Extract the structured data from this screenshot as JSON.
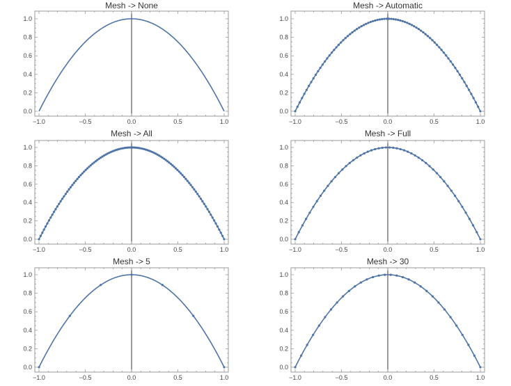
{
  "chart_data": [
    {
      "type": "line",
      "title": "Mesh -> None",
      "function": "1 - x^2",
      "xlim": [
        -1.0,
        1.0
      ],
      "ylim": [
        0.0,
        1.0
      ],
      "xticks": [
        "-1.0",
        "-0.5",
        "0.0",
        "0.5",
        "1.0"
      ],
      "yticks": [
        "0.0",
        "0.2",
        "0.4",
        "0.6",
        "0.8",
        "1.0"
      ],
      "mesh_points": 0,
      "grid": false,
      "series": [
        {
          "color": "#4e73a6"
        }
      ]
    },
    {
      "type": "line",
      "title": "Mesh -> Automatic",
      "function": "1 - x^2",
      "xlim": [
        -1.0,
        1.0
      ],
      "ylim": [
        0.0,
        1.0
      ],
      "xticks": [
        "-1.0",
        "-0.5",
        "0.0",
        "0.5",
        "1.0"
      ],
      "yticks": [
        "0.0",
        "0.2",
        "0.4",
        "0.6",
        "0.8",
        "1.0"
      ],
      "mesh_points": 80,
      "grid": false,
      "series": [
        {
          "color": "#4e73a6"
        }
      ]
    },
    {
      "type": "line",
      "title": "Mesh -> All",
      "function": "1 - x^2",
      "xlim": [
        -1.0,
        1.0
      ],
      "ylim": [
        0.0,
        1.0
      ],
      "xticks": [
        "-1.0",
        "-0.5",
        "0.0",
        "0.5",
        "1.0"
      ],
      "yticks": [
        "0.0",
        "0.2",
        "0.4",
        "0.6",
        "0.8",
        "1.0"
      ],
      "mesh_points": 110,
      "grid": false,
      "series": [
        {
          "color": "#4e73a6"
        }
      ]
    },
    {
      "type": "line",
      "title": "Mesh -> Full",
      "function": "1 - x^2",
      "xlim": [
        -1.0,
        1.0
      ],
      "ylim": [
        0.0,
        1.0
      ],
      "xticks": [
        "-1.0",
        "-0.5",
        "0.0",
        "0.5",
        "1.0"
      ],
      "yticks": [
        "0.0",
        "0.2",
        "0.4",
        "0.6",
        "0.8",
        "1.0"
      ],
      "mesh_points": 50,
      "grid": false,
      "series": [
        {
          "color": "#4e73a6"
        }
      ]
    },
    {
      "type": "line",
      "title": "Mesh -> 5",
      "function": "1 - x^2",
      "xlim": [
        -1.0,
        1.0
      ],
      "ylim": [
        0.0,
        1.0
      ],
      "xticks": [
        "-1.0",
        "-0.5",
        "0.0",
        "0.5",
        "1.0"
      ],
      "yticks": [
        "0.0",
        "0.2",
        "0.4",
        "0.6",
        "0.8",
        "1.0"
      ],
      "mesh_points": 5,
      "grid": false,
      "series": [
        {
          "color": "#4e73a6"
        }
      ]
    },
    {
      "type": "line",
      "title": "Mesh -> 30",
      "function": "1 - x^2",
      "xlim": [
        -1.0,
        1.0
      ],
      "ylim": [
        0.0,
        1.0
      ],
      "xticks": [
        "-1.0",
        "-0.5",
        "0.0",
        "0.5",
        "1.0"
      ],
      "yticks": [
        "0.0",
        "0.2",
        "0.4",
        "0.6",
        "0.8",
        "1.0"
      ],
      "mesh_points": 30,
      "grid": false,
      "series": [
        {
          "color": "#4e73a6"
        }
      ]
    }
  ],
  "colors": {
    "curve": "#4e73a6",
    "frame": "#9a9a9a",
    "axis_line": "#000000",
    "title": "#333333"
  }
}
